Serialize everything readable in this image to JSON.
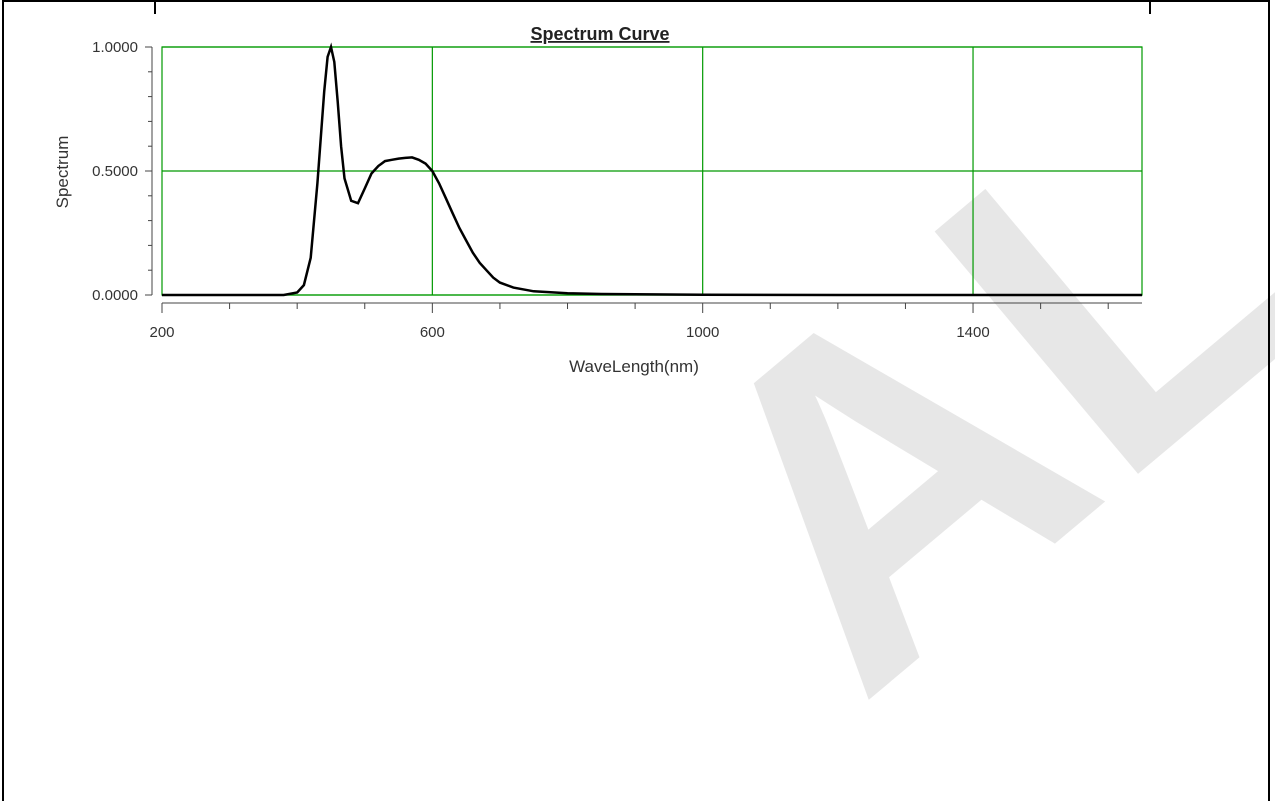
{
  "chart_data": {
    "type": "line",
    "title": "Spectrum Curve",
    "xlabel": "WaveLength(nm)",
    "ylabel": "Spectrum",
    "xlim": [
      200,
      1650
    ],
    "ylim": [
      0,
      1
    ],
    "x_ticks": [
      200,
      600,
      1000,
      1400
    ],
    "x_tick_labels": [
      "200",
      "600",
      "1000",
      "1400"
    ],
    "y_ticks": [
      0,
      0.5,
      1
    ],
    "y_tick_labels": [
      "0.0000",
      "0.5000",
      "1.0000"
    ],
    "grid": true,
    "grid_color": "#009900",
    "line_color": "#000000",
    "watermark": "TRIAL",
    "series": [
      {
        "x": [
          200,
          380,
          400,
          410,
          420,
          430,
          440,
          445,
          450,
          455,
          460,
          465,
          470,
          480,
          490,
          500,
          510,
          520,
          530,
          540,
          550,
          560,
          570,
          580,
          590,
          600,
          610,
          620,
          630,
          640,
          650,
          660,
          670,
          680,
          690,
          700,
          720,
          750,
          800,
          850,
          900,
          1000,
          1200,
          1400,
          1650
        ],
        "y": [
          0,
          0,
          0.01,
          0.04,
          0.15,
          0.45,
          0.82,
          0.96,
          1.0,
          0.94,
          0.78,
          0.6,
          0.47,
          0.38,
          0.37,
          0.43,
          0.49,
          0.52,
          0.54,
          0.545,
          0.55,
          0.553,
          0.555,
          0.545,
          0.53,
          0.5,
          0.45,
          0.39,
          0.33,
          0.27,
          0.22,
          0.17,
          0.13,
          0.1,
          0.07,
          0.05,
          0.03,
          0.015,
          0.007,
          0.004,
          0.003,
          0.001,
          0,
          0,
          0
        ]
      }
    ]
  }
}
